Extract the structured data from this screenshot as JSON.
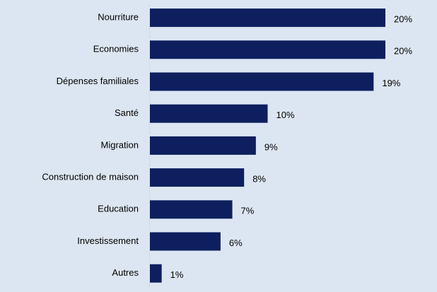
{
  "chart_data": {
    "type": "bar",
    "orientation": "horizontal",
    "categories": [
      "Nourriture",
      "Economies",
      "Dépenses familiales",
      "Santé",
      "Migration",
      "Construction de maison",
      "Education",
      "Investissement",
      "Autres"
    ],
    "values": [
      20,
      20,
      19,
      10,
      9,
      8,
      7,
      6,
      1
    ],
    "value_labels": [
      "20%",
      "20%",
      "19%",
      "10%",
      "9%",
      "8%",
      "7%",
      "6%",
      "1%"
    ],
    "color": "#0d1f5e"
  }
}
